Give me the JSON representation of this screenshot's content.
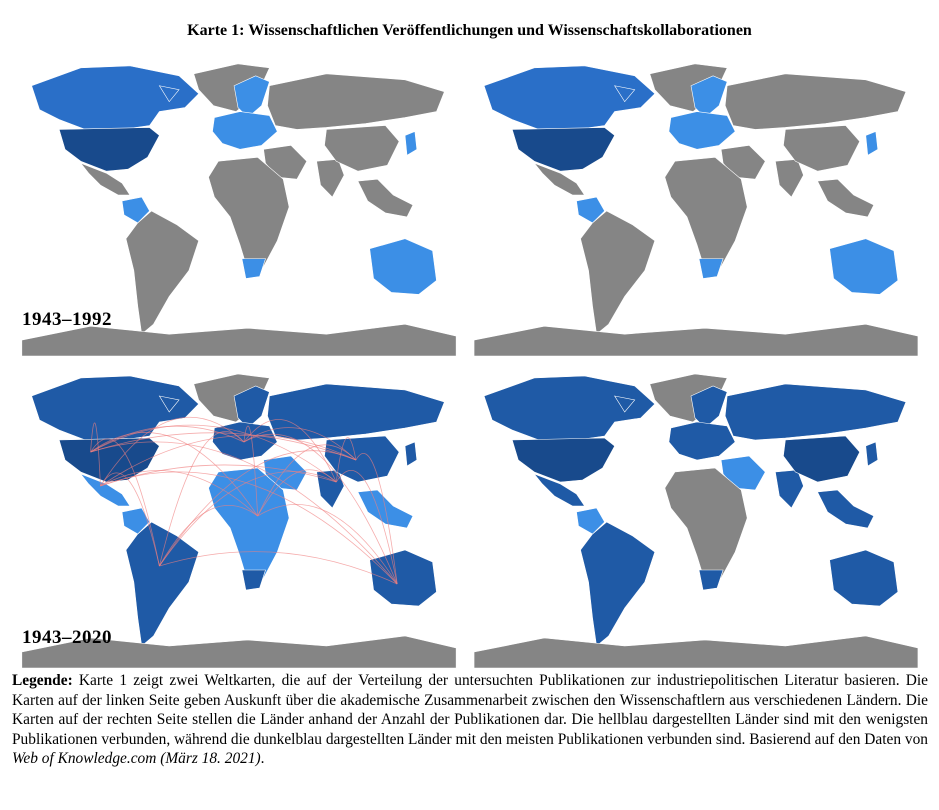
{
  "title": "Karte 1: Wissenschaftlichen Veröffentlichungen und Wissenschaftskollaborationen",
  "periods": {
    "top": "1943–1992",
    "bottom": "1943–2020"
  },
  "legend": {
    "label": "Legende:",
    "text": " Karte 1 zeigt zwei Weltkarten, die auf der Verteilung der untersuchten Publikationen zur industriepolitischen Literatur basieren. Die Karten auf der linken Seite geben Auskunft über die akademische Zusammenarbeit zwischen den Wissenschaftlern aus verschiedenen Ländern. Die Karten auf der rechten Seite stellen die Länder anhand der Anzahl der Publikationen dar. Die hellblau dargestellten Länder sind mit den wenigsten Publikationen verbunden, während die dunkelblau dargestellten Länder mit den meisten Publikationen verbunden sind. Basierend auf den Daten von ",
    "source": "Web of Knowledge.com",
    "source_tail": " (März 18. 2021)",
    "end": "."
  },
  "colors": {
    "no_data": "#858585",
    "low": "#3c8fe6",
    "mid": "#2a6fc8",
    "high": "#1f5aa6",
    "max": "#184a8c",
    "links": "#f08080"
  },
  "maps": [
    {
      "id": "collab-1943-1992",
      "period": "1943–1992",
      "countries": {
        "north-america": "mid",
        "usa": "max",
        "mexico": "no_data",
        "greenland": "no_data",
        "south-america": "no_data",
        "colombia": "low",
        "europe": "low",
        "scandinavia": "low",
        "russia": "no_data",
        "china": "no_data",
        "india": "no_data",
        "middle-east": "no_data",
        "africa": "no_data",
        "south-africa": "low",
        "australia": "low",
        "japan": "low",
        "southeast-asia": "no_data"
      },
      "links": false
    },
    {
      "id": "pubs-1943-1992",
      "period": "1943–1992",
      "countries": {
        "north-america": "mid",
        "usa": "max",
        "mexico": "no_data",
        "greenland": "no_data",
        "south-america": "no_data",
        "colombia": "low",
        "europe": "low",
        "scandinavia": "low",
        "russia": "no_data",
        "china": "no_data",
        "india": "no_data",
        "middle-east": "no_data",
        "africa": "no_data",
        "south-africa": "low",
        "australia": "low",
        "japan": "low",
        "southeast-asia": "no_data"
      },
      "links": false
    },
    {
      "id": "collab-1943-2020",
      "period": "1943–2020",
      "countries": {
        "north-america": "high",
        "usa": "max",
        "mexico": "low",
        "greenland": "no_data",
        "south-america": "high",
        "colombia": "low",
        "europe": "high",
        "scandinavia": "high",
        "russia": "high",
        "china": "high",
        "india": "high",
        "middle-east": "low",
        "africa": "low",
        "south-africa": "high",
        "australia": "high",
        "japan": "high",
        "southeast-asia": "low"
      },
      "links": true
    },
    {
      "id": "pubs-1943-2020",
      "period": "1943–2020",
      "countries": {
        "north-america": "high",
        "usa": "max",
        "mexico": "high",
        "greenland": "no_data",
        "south-america": "high",
        "colombia": "low",
        "europe": "high",
        "scandinavia": "high",
        "russia": "high",
        "china": "max",
        "india": "high",
        "middle-east": "low",
        "africa": "no_data",
        "south-africa": "high",
        "australia": "high",
        "japan": "high",
        "southeast-asia": "high"
      },
      "links": false
    }
  ]
}
